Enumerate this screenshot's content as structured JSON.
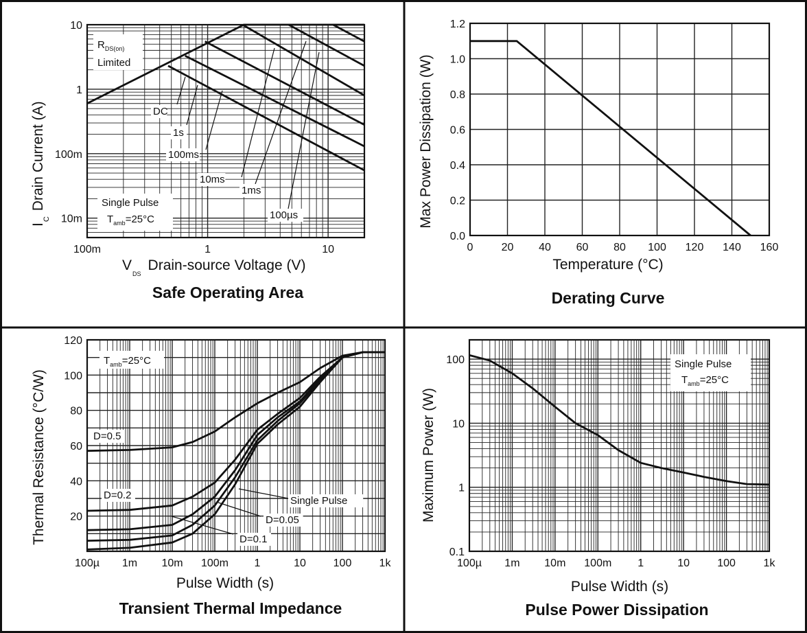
{
  "chart_data": [
    {
      "type": "line",
      "title": "Safe Operating Area",
      "xlabel": {
        "main": "V",
        "sub": "DS",
        "rest": "Drain-source Voltage (V)"
      },
      "ylabel": {
        "main": "I",
        "sub": "C",
        "rest": "Drain Current (A)"
      },
      "xscale": "log",
      "yscale": "log",
      "xlim": [
        0.1,
        20
      ],
      "ylim": [
        0.005,
        10
      ],
      "xticks": [
        {
          "v": 0.1,
          "label": "100m"
        },
        {
          "v": 1,
          "label": "1"
        },
        {
          "v": 10,
          "label": "10"
        }
      ],
      "yticks": [
        {
          "v": 0.01,
          "label": "10m"
        },
        {
          "v": 0.1,
          "label": "100m"
        },
        {
          "v": 1,
          "label": "1"
        },
        {
          "v": 10,
          "label": "10"
        }
      ],
      "grid": true,
      "annotations": [
        {
          "text": "DC"
        },
        {
          "text": "1s"
        },
        {
          "text": "100ms"
        },
        {
          "text": "10ms"
        },
        {
          "text": "1ms"
        },
        {
          "text": "100µs"
        }
      ],
      "rds_note": {
        "main": "R",
        "sub": "DS(on)",
        "line2": "Limited"
      },
      "cond_note": {
        "line1": "Single Pulse",
        "main": "T",
        "sub": "amb",
        "rest": "=25°C"
      },
      "series": [
        {
          "x": [
            0.1,
            2,
            20
          ],
          "y": [
            0.6,
            10,
            10
          ]
        },
        {
          "x": [
            0.47,
            20
          ],
          "y": [
            2.3,
            0.055
          ]
        },
        {
          "x": [
            0.65,
            20
          ],
          "y": [
            3.3,
            0.13
          ]
        },
        {
          "x": [
            0.95,
            20
          ],
          "y": [
            5.5,
            0.28
          ]
        },
        {
          "x": [
            1.95,
            20
          ],
          "y": [
            10,
            0.8
          ]
        },
        {
          "x": [
            4.7,
            20
          ],
          "y": [
            10,
            2.3
          ]
        },
        {
          "x": [
            11,
            20
          ],
          "y": [
            10,
            5.5
          ]
        }
      ]
    },
    {
      "type": "line",
      "title": "Derating Curve",
      "xlabel": "Temperature (°C)",
      "ylabel": "Max Power Dissipation (W)",
      "xlim": [
        0,
        160
      ],
      "ylim": [
        0,
        1.2
      ],
      "xticks": [
        {
          "v": 0,
          "label": "0"
        },
        {
          "v": 20,
          "label": "20"
        },
        {
          "v": 40,
          "label": "40"
        },
        {
          "v": 60,
          "label": "60"
        },
        {
          "v": 80,
          "label": "80"
        },
        {
          "v": 100,
          "label": "100"
        },
        {
          "v": 120,
          "label": "120"
        },
        {
          "v": 140,
          "label": "140"
        },
        {
          "v": 160,
          "label": "160"
        }
      ],
      "yticks": [
        {
          "v": 0,
          "label": "0.0"
        },
        {
          "v": 0.2,
          "label": "0.2"
        },
        {
          "v": 0.4,
          "label": "0.4"
        },
        {
          "v": 0.6,
          "label": "0.6"
        },
        {
          "v": 0.8,
          "label": "0.8"
        },
        {
          "v": 1.0,
          "label": "1.0"
        },
        {
          "v": 1.2,
          "label": "1.2"
        }
      ],
      "grid": true,
      "series": [
        {
          "x": [
            0,
            25,
            150
          ],
          "y": [
            1.1,
            1.1,
            0
          ]
        }
      ]
    },
    {
      "type": "line",
      "title": "Transient Thermal Impedance",
      "xlabel": "Pulse Width (s)",
      "ylabel": "Thermal Resistance (°C/W)",
      "xscale": "log",
      "xlim": [
        0.0001,
        1000
      ],
      "ylim": [
        0,
        120
      ],
      "xticks": [
        {
          "v": 0.0001,
          "label": "100µ"
        },
        {
          "v": 0.001,
          "label": "1m"
        },
        {
          "v": 0.01,
          "label": "10m"
        },
        {
          "v": 0.1,
          "label": "100m"
        },
        {
          "v": 1,
          "label": "1"
        },
        {
          "v": 10,
          "label": "10"
        },
        {
          "v": 100,
          "label": "100"
        },
        {
          "v": 1000,
          "label": "1k"
        }
      ],
      "yticks": [
        {
          "v": 20,
          "label": "20"
        },
        {
          "v": 40,
          "label": "40"
        },
        {
          "v": 60,
          "label": "60"
        },
        {
          "v": 80,
          "label": "80"
        },
        {
          "v": 100,
          "label": "100"
        },
        {
          "v": 120,
          "label": "120"
        }
      ],
      "grid": true,
      "annotations": [
        {
          "text": "D=0.5"
        },
        {
          "text": "D=0.2"
        },
        {
          "text": "Single Pulse"
        },
        {
          "text": "D=0.05"
        },
        {
          "text": "D=0.1"
        }
      ],
      "cond_note": {
        "main": "T",
        "sub": "amb",
        "rest": "=25°C"
      },
      "series": [
        {
          "name": "D=0.5",
          "x": [
            0.0001,
            0.001,
            0.01,
            0.03,
            0.1,
            0.3,
            1,
            3,
            10,
            30,
            100,
            300,
            1000
          ],
          "y": [
            57,
            57.5,
            59,
            62,
            68,
            76,
            84,
            90,
            96,
            104,
            111,
            113,
            113
          ]
        },
        {
          "name": "D=0.2",
          "x": [
            0.0001,
            0.001,
            0.01,
            0.03,
            0.1,
            0.3,
            1,
            3,
            10,
            30,
            100,
            300,
            1000
          ],
          "y": [
            23,
            23.5,
            26,
            31,
            39,
            52,
            69,
            78,
            87,
            99,
            110,
            113,
            113
          ]
        },
        {
          "name": "D=0.1",
          "x": [
            0.0001,
            0.001,
            0.01,
            0.03,
            0.1,
            0.3,
            1,
            3,
            10,
            30,
            100,
            300,
            1000
          ],
          "y": [
            12,
            12.5,
            15,
            21,
            31,
            46,
            66,
            76,
            85,
            98,
            110,
            113,
            113
          ]
        },
        {
          "name": "D=0.05",
          "x": [
            0.0001,
            0.001,
            0.01,
            0.03,
            0.1,
            0.3,
            1,
            3,
            10,
            30,
            100,
            300,
            1000
          ],
          "y": [
            6,
            6.5,
            9,
            15,
            26,
            42,
            63,
            74,
            84,
            97,
            110,
            113,
            113
          ]
        },
        {
          "name": "Single Pulse",
          "x": [
            0.0001,
            0.001,
            0.01,
            0.03,
            0.1,
            0.3,
            1,
            3,
            10,
            30,
            100,
            300,
            1000
          ],
          "y": [
            1,
            2,
            5,
            10,
            21,
            38,
            61,
            72,
            82,
            96,
            110,
            113,
            113
          ]
        }
      ]
    },
    {
      "type": "line",
      "title": "Pulse Power Dissipation",
      "xlabel": "Pulse Width (s)",
      "ylabel": "Maximum Power (W)",
      "xscale": "log",
      "yscale": "log",
      "xlim": [
        0.0001,
        1000
      ],
      "ylim": [
        0.1,
        200
      ],
      "xticks": [
        {
          "v": 0.0001,
          "label": "100µ"
        },
        {
          "v": 0.001,
          "label": "1m"
        },
        {
          "v": 0.01,
          "label": "10m"
        },
        {
          "v": 0.1,
          "label": "100m"
        },
        {
          "v": 1,
          "label": "1"
        },
        {
          "v": 10,
          "label": "10"
        },
        {
          "v": 100,
          "label": "100"
        },
        {
          "v": 1000,
          "label": "1k"
        }
      ],
      "yticks": [
        {
          "v": 0.1,
          "label": "0.1"
        },
        {
          "v": 1,
          "label": "1"
        },
        {
          "v": 10,
          "label": "10"
        },
        {
          "v": 100,
          "label": "100"
        }
      ],
      "grid": true,
      "cond_note": {
        "line1": "Single Pulse",
        "main": "T",
        "sub": "amb",
        "rest": "=25°C"
      },
      "series": [
        {
          "x": [
            0.0001,
            0.0003,
            0.001,
            0.003,
            0.01,
            0.03,
            0.1,
            0.3,
            1,
            3,
            10,
            30,
            100,
            300,
            1000
          ],
          "y": [
            115,
            95,
            60,
            35,
            18,
            10,
            6.5,
            3.8,
            2.4,
            2.0,
            1.7,
            1.45,
            1.25,
            1.12,
            1.1
          ]
        }
      ]
    }
  ]
}
